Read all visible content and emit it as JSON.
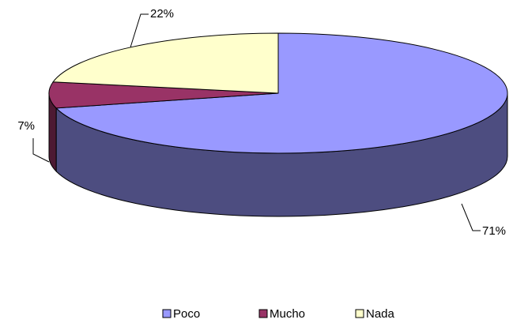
{
  "chart_data": {
    "type": "pie3d",
    "categories": [
      "Poco",
      "Mucho",
      "Nada"
    ],
    "values": [
      71,
      7,
      22
    ],
    "value_labels": [
      "71%",
      "7%",
      "22%"
    ],
    "colors": [
      "#9999ff",
      "#993366",
      "#ffffcc"
    ],
    "legend": "bottom"
  }
}
